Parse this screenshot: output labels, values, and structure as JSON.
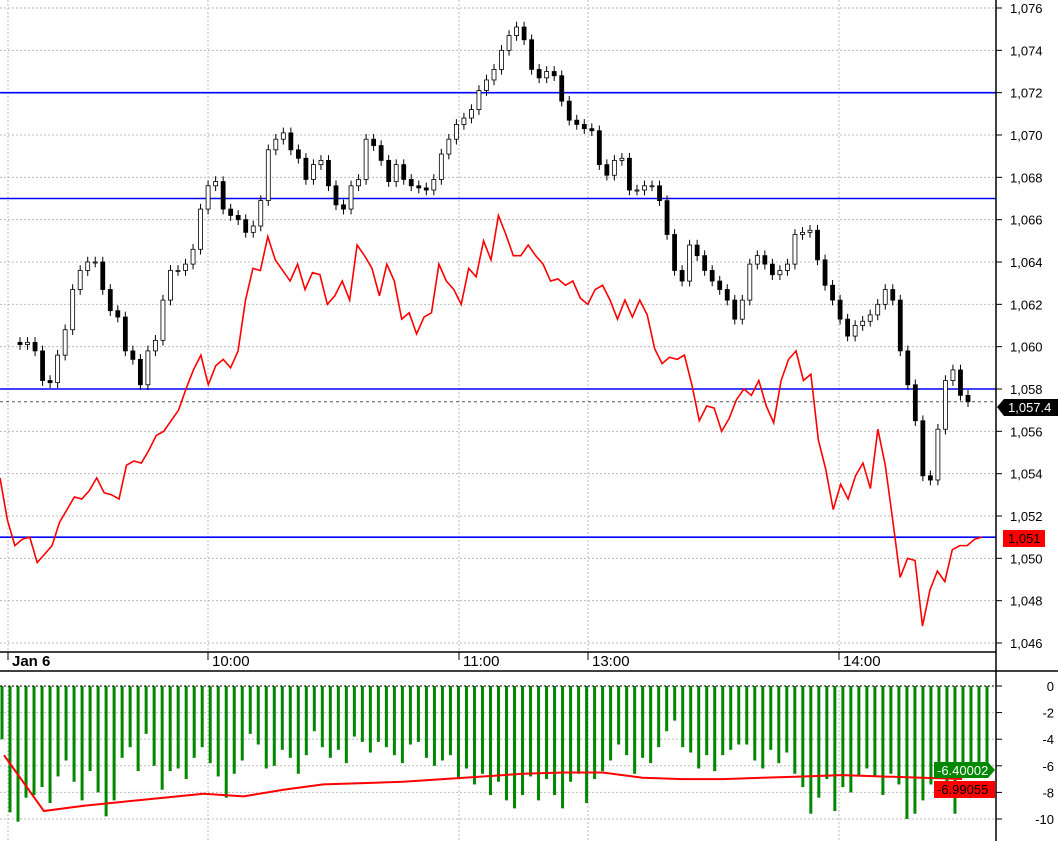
{
  "chart_data": [
    {
      "type": "candlestick",
      "panel": "price",
      "x_tick_labels": [
        "Jan 6",
        "10:00",
        "11:00",
        "13:00",
        "14:00"
      ],
      "y_tick_labels": [
        "1,046",
        "1,048",
        "1,050",
        "1,052",
        "1,054",
        "1,056",
        "1,058",
        "1,060",
        "1,062",
        "1,064",
        "1,066",
        "1,068",
        "1,070",
        "1,072",
        "1,074",
        "1,076"
      ],
      "ylim": [
        1046,
        1076
      ],
      "grid": true,
      "closes": [
        1060.1,
        1060.2,
        1059.8,
        1058.4,
        1058.3,
        1059.6,
        1060.8,
        1062.7,
        1063.6,
        1064.0,
        1064.0,
        1062.7,
        1061.7,
        1061.4,
        1059.8,
        1059.4,
        1058.2,
        1059.8,
        1060.3,
        1062.2,
        1063.6,
        1063.6,
        1063.9,
        1064.6,
        1066.5,
        1067.6,
        1067.8,
        1066.5,
        1066.2,
        1066.0,
        1065.4,
        1065.7,
        1066.9,
        1069.3,
        1069.8,
        1070.1,
        1069.3,
        1068.9,
        1067.9,
        1068.6,
        1068.8,
        1067.6,
        1066.7,
        1066.5,
        1067.6,
        1067.9,
        1069.8,
        1069.5,
        1068.8,
        1067.8,
        1068.6,
        1067.9,
        1067.6,
        1067.5,
        1067.4,
        1067.9,
        1069.1,
        1069.8,
        1070.5,
        1070.8,
        1071.2,
        1072.1,
        1072.6,
        1073.1,
        1074.0,
        1074.7,
        1075.1,
        1074.5,
        1073.1,
        1072.7,
        1073.0,
        1072.8,
        1071.6,
        1070.7,
        1070.5,
        1070.3,
        1070.2,
        1068.6,
        1068.1,
        1068.8,
        1068.9,
        1067.4,
        1067.4,
        1067.6,
        1067.6,
        1066.9,
        1065.3,
        1063.6,
        1063.1,
        1064.8,
        1064.3,
        1063.6,
        1063.1,
        1062.7,
        1062.2,
        1061.3,
        1062.2,
        1063.9,
        1064.3,
        1063.9,
        1063.4,
        1063.6,
        1063.9,
        1065.3,
        1065.4,
        1065.5,
        1064.1,
        1062.9,
        1062.2,
        1061.3,
        1060.5,
        1061.0,
        1061.2,
        1061.5,
        1062.0,
        1062.7,
        1062.2,
        1059.8,
        1058.2,
        1056.5,
        1053.9,
        1053.7,
        1056.1,
        1058.4,
        1058.9,
        1057.7,
        1057.4
      ],
      "overlay_series": {
        "color": "#ff0000",
        "values": [
          1053.8,
          1051.8,
          1050.6,
          1050.9,
          1051.0,
          1049.8,
          1050.2,
          1050.6,
          1051.7,
          1052.3,
          1052.9,
          1052.8,
          1053.2,
          1053.8,
          1053.1,
          1053.0,
          1052.8,
          1054.4,
          1054.6,
          1054.5,
          1055.1,
          1055.8,
          1056.0,
          1056.5,
          1057.0,
          1058.0,
          1058.9,
          1059.6,
          1058.2,
          1059.1,
          1059.4,
          1059.0,
          1059.8,
          1062.2,
          1063.7,
          1063.6,
          1065.2,
          1064.1,
          1063.6,
          1063.1,
          1063.9,
          1062.7,
          1063.5,
          1063.4,
          1062.0,
          1062.4,
          1063.1,
          1062.2,
          1064.8,
          1064.3,
          1063.7,
          1062.4,
          1063.9,
          1063.1,
          1061.3,
          1061.6,
          1060.6,
          1061.4,
          1061.6,
          1063.9,
          1063.1,
          1062.7,
          1062.0,
          1063.7,
          1063.3,
          1065.0,
          1064.1,
          1066.2,
          1065.3,
          1064.3,
          1064.3,
          1064.8,
          1064.3,
          1063.9,
          1063.1,
          1063.2,
          1062.9,
          1063.1,
          1062.3,
          1062.0,
          1062.7,
          1062.9,
          1062.2,
          1061.3,
          1062.2,
          1061.4,
          1062.2,
          1061.5,
          1059.9,
          1059.2,
          1059.5,
          1059.4,
          1059.6,
          1058.2,
          1056.5,
          1057.2,
          1057.1,
          1056.0,
          1056.6,
          1057.5,
          1058.0,
          1057.7,
          1058.4,
          1057.2,
          1056.4,
          1058.4,
          1059.4,
          1059.8,
          1058.4,
          1058.7,
          1055.6,
          1054.2,
          1052.3,
          1053.5,
          1052.8,
          1053.9,
          1054.5,
          1053.3,
          1056.1,
          1054.4,
          1051.8,
          1049.1,
          1050.0,
          1049.9,
          1046.8,
          1048.5,
          1049.4,
          1048.9,
          1050.4,
          1050.6,
          1050.6,
          1050.9,
          1051.0
        ]
      },
      "horizontal_lines": {
        "color": "#0000ff",
        "levels": [
          1072,
          1067,
          1058,
          1051
        ]
      },
      "last_price_label": "1,057.4",
      "overlay_last_label": "1,051"
    },
    {
      "type": "bar",
      "panel": "indicator",
      "y_tick_labels": [
        "0",
        "-2",
        "-4",
        "-6",
        "-8",
        "-10"
      ],
      "ylim": [
        -11,
        0
      ],
      "grid": true,
      "bar_color": "#008800",
      "values": [
        -4,
        -9.5,
        -10.2,
        -8.4,
        -8.2,
        -7.6,
        -8.8,
        -6.8,
        -5.6,
        -7.2,
        -8.6,
        -6.4,
        -8,
        -9.8,
        -8.6,
        -5.4,
        -4.6,
        -6.4,
        -3.6,
        -6,
        -7.8,
        -6.4,
        -6.2,
        -7,
        -5.4,
        -4.6,
        -5.8,
        -6.8,
        -8.4,
        -6.6,
        -5.6,
        -3.6,
        -4.4,
        -6.2,
        -6,
        -4.8,
        -5.4,
        -6.6,
        -5.2,
        -3.4,
        -4.6,
        -5.4,
        -4.8,
        -5.8,
        -3.8,
        -4.2,
        -5,
        -4.2,
        -4.6,
        -5.2,
        -5.8,
        -4.4,
        -4.2,
        -5.4,
        -6,
        -5.6,
        -5.2,
        -7,
        -6.2,
        -7.4,
        -6.6,
        -8.2,
        -7.2,
        -8.6,
        -9.2,
        -8.2,
        -6.8,
        -8.6,
        -7,
        -8.2,
        -9.2,
        -7.2,
        -6.6,
        -8.8,
        -7,
        -6.4,
        -5.6,
        -4.4,
        -5.2,
        -6.6,
        -5.4,
        -5.8,
        -4.6,
        -3.4,
        -2.6,
        -4.6,
        -5,
        -6.2,
        -5.2,
        -6.4,
        -5.2,
        -4.8,
        -4.4,
        -4.4,
        -5.6,
        -6.2,
        -4.8,
        -5.8,
        -5,
        -6.6,
        -7.6,
        -9.6,
        -8.4,
        -7,
        -9.4,
        -7.6,
        -8,
        -6.8,
        -6.2,
        -6.8,
        -8.2,
        -6.6,
        -7.4,
        -10,
        -9.6,
        -8.6,
        -7.4,
        -6.8,
        -8.2,
        -9.6,
        -6.4,
        -6.4,
        -6.4,
        -6.40002
      ],
      "average_line": {
        "color": "#ff0000",
        "values": [
          -5.2,
          -9.4,
          -9.0,
          -8.7,
          -8.4,
          -8.1,
          -8.3,
          -7.8,
          -7.4,
          -7.3,
          -7.2,
          -7.0,
          -6.8,
          -6.6,
          -6.5,
          -6.5,
          -6.9,
          -7.0,
          -7.0,
          -6.9,
          -6.8,
          -6.7,
          -6.8,
          -6.9,
          -6.99055
        ]
      },
      "last_value_label": "-6.40002",
      "average_last_label": "-6.99055"
    }
  ]
}
